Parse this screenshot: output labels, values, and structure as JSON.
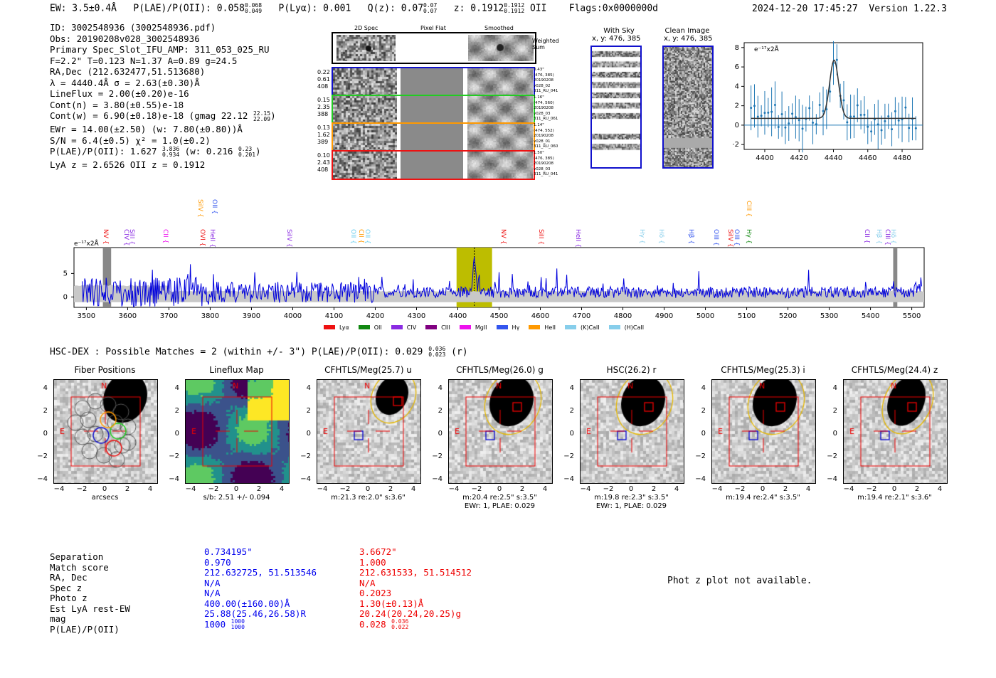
{
  "header": {
    "ew": "EW: 3.5±0.4Å",
    "plae_label": "P(LAE)/P(OII): 0.058",
    "plae_hi": "0.068",
    "plae_lo": "0.049",
    "plya": "P(Lyα): 0.001",
    "qz_label": "Q(z): 0.07",
    "qz_hi": "0.07",
    "qz_lo": "0.07",
    "z_label": "z: 0.1912",
    "z_hi": "0.1912",
    "z_lo": "0.1912",
    "z_line": "OII",
    "flags": "Flags:0x0000000d",
    "datetime": "2024-12-20 17:45:27",
    "version": "Version 1.22.3"
  },
  "info": {
    "id": "ID: 3002548936 (3002548936.pdf)",
    "obs": "Obs: 20190208v028_3002548936",
    "primary": "Primary Spec_Slot_IFU_AMP: 311_053_025_RU",
    "fparams": "F=2.2\"  T=0.123  N=1.37  A=0.89  g=24.5",
    "radec": "RA,Dec (212.632477,51.513680)",
    "lambda": "λ = 4440.4Å   σ = 2.63(±0.30)Å",
    "lineflux": "LineFlux = 2.00(±0.20)e-16",
    "contn": "Cont(n) = 3.80(±0.55)e-18",
    "contw": "Cont(w) = 6.90(±0.18)e-18 (gmag 22.12",
    "contw_hi": "22.15",
    "contw_lo": "22.09",
    "contw_close": ")",
    "ewr": "EWr = 14.00(±2.50) (w: 7.80(±0.80))Å",
    "sn": "S/N = 6.4(±0.5)  χ² = 1.0(±0.2)",
    "plae": "P(LAE)/P(OII): 1.627",
    "plae_hi": "3.836",
    "plae_lo": "0.934",
    "plae_w": "(w: 0.216",
    "plae_w_hi": "0.23",
    "plae_w_lo": "0.201",
    "plae_close": ")",
    "lya": "LyA z = 2.6526   OII z = 0.1912"
  },
  "spec2d": {
    "col_labels": [
      "2D Spec",
      "Pixel Flat",
      "Smoothed"
    ],
    "weighted_sum": [
      "Weighted",
      "Sum"
    ],
    "fibers": [
      {
        "left": [
          "0.22",
          "0.61",
          "408"
        ],
        "right": [
          "0.43\"",
          "(476, 385)",
          "20190208",
          "v028_02",
          "311_RU_041"
        ],
        "color": "#1010cc"
      },
      {
        "left": [
          "0.15",
          "2.35",
          "388"
        ],
        "right": [
          "1.16\"",
          "(474, 560)",
          "20190208",
          "v028_03",
          "311_RU_061"
        ],
        "color": "#22cc22"
      },
      {
        "left": [
          "0.13",
          "1.62",
          "389"
        ],
        "right": [
          "1.14\"",
          "(474, 552)",
          "20190208",
          "v028_01",
          "311_RU_060"
        ],
        "color": "#ff9900"
      },
      {
        "left": [
          "0.10",
          "2.43",
          "408"
        ],
        "right": [
          "1.50\"",
          "(476, 385)",
          "20190208",
          "v028_03",
          "311_RU_041"
        ],
        "color": "#ee1111"
      }
    ]
  },
  "sky": {
    "with_sky_title": "With Sky",
    "with_sky_xy": "x, y: 476, 385",
    "clean_title": "Clean Image",
    "clean_xy": "x, y: 476, 385"
  },
  "zoom_plot": {
    "ylabel": "e⁻¹⁷x2Å",
    "x_ticks": [
      "4400",
      "4420",
      "4440",
      "4460",
      "4480"
    ],
    "y_ticks": [
      "8",
      "6",
      "4",
      "2",
      "0",
      "−2"
    ]
  },
  "full_spec": {
    "ylabel": "e⁻¹⁷x2Å",
    "x_ticks": [
      "3500",
      "3600",
      "3700",
      "3800",
      "3900",
      "4000",
      "4100",
      "4200",
      "4300",
      "4400",
      "4500",
      "4600",
      "4700",
      "4800",
      "4900",
      "5000",
      "5100",
      "5200",
      "5300",
      "5400",
      "5500"
    ],
    "y_ticks": [
      "5",
      "0"
    ],
    "line_labels": [
      {
        "text": "NV",
        "color": "#ee1111"
      },
      {
        "text": "CIV",
        "color": "#8a2be2"
      },
      {
        "text": "SiII",
        "color": "#8a2be2"
      },
      {
        "text": "CII",
        "color": "#ee11ee"
      },
      {
        "text": "OVI",
        "color": "#ee1111"
      },
      {
        "text": "SiIV",
        "color": "#ff9900"
      },
      {
        "text": "HeII",
        "color": "#8a2be2"
      },
      {
        "text": "OII",
        "color": "#3355ee"
      },
      {
        "text": "SiIV",
        "color": "#8a2be2"
      },
      {
        "text": "OII",
        "color": "#66ccee"
      },
      {
        "text": "CII",
        "color": "#ff9900"
      },
      {
        "text": "OII",
        "color": "#66ccee"
      },
      {
        "text": "NV",
        "color": "#ee1111"
      },
      {
        "text": "SiII",
        "color": "#ee1111"
      },
      {
        "text": "HeII",
        "color": "#8a2be2"
      },
      {
        "text": "Hγ",
        "color": "#87ceeb"
      },
      {
        "text": "Hδ",
        "color": "#87ceeb"
      },
      {
        "text": "Hβ",
        "color": "#3355ee"
      },
      {
        "text": "OIII",
        "color": "#3355ee"
      },
      {
        "text": "SiIV",
        "color": "#ee1111"
      },
      {
        "text": "OIII",
        "color": "#3355ee"
      },
      {
        "text": "Hγ",
        "color": "#118811"
      },
      {
        "text": "CIII",
        "color": "#ff9900"
      },
      {
        "text": "CII",
        "color": "#8a2be2"
      },
      {
        "text": "Hβ",
        "color": "#87ceeb"
      },
      {
        "text": "CIII",
        "color": "#8a2be2"
      },
      {
        "text": "Hδ",
        "color": "#87ceeb"
      }
    ],
    "legend": [
      {
        "label": "Lyα",
        "color": "#ee1111"
      },
      {
        "label": "OII",
        "color": "#118811"
      },
      {
        "label": "CIV",
        "color": "#8a2be2"
      },
      {
        "label": "CIII",
        "color": "#800080"
      },
      {
        "label": "MgII",
        "color": "#ee11ee"
      },
      {
        "label": "Hγ",
        "color": "#3355ee"
      },
      {
        "label": "HeII",
        "color": "#ff9900"
      },
      {
        "label": "(K)CaII",
        "color": "#87ceeb"
      },
      {
        "label": "(H)CaII",
        "color": "#87ceeb"
      }
    ]
  },
  "hsc": {
    "title": "HSC-DEX : Possible Matches = 2 (within +/- 3\")  P(LAE)/P(OII): 0.029",
    "plae_hi": "0.036",
    "plae_lo": "0.023",
    "band": "(r)"
  },
  "cutouts": [
    {
      "title": "Fiber Positions",
      "cap1": "arcsecs",
      "cap2": ""
    },
    {
      "title": "Lineflux Map",
      "cap1": "s/b: 2.51 +/- 0.094",
      "cap2": ""
    },
    {
      "title": "CFHTLS/Meg(25.7) u",
      "cap1": "m:21.3  re:2.0\"  s:3.6\"",
      "cap2": ""
    },
    {
      "title": "CFHTLS/Meg(26.0) g",
      "cap1": "m:20.4  re:2.5\"  s:3.5\"",
      "cap2": "EWr: 1, PLAE: 0.029"
    },
    {
      "title": "HSC(26.2) r",
      "cap1": "m:19.8  re:2.3\"  s:3.5\"",
      "cap2": "EWr: 1, PLAE: 0.029"
    },
    {
      "title": "CFHTLS/Meg(25.3) i",
      "cap1": "m:19.4  re:2.4\"  s:3.5\"",
      "cap2": ""
    },
    {
      "title": "CFHTLS/Meg(24.4) z",
      "cap1": "m:19.4  re:2.1\"  s:3.6\"",
      "cap2": ""
    }
  ],
  "cutout_axes": {
    "y_ticks": [
      "4",
      "2",
      "0",
      "−2",
      "−4"
    ],
    "x_ticks": [
      "−4",
      "−2",
      "0",
      "2",
      "4"
    ],
    "north": "N",
    "east": "E"
  },
  "match_table": {
    "labels": [
      "Separation",
      "Match score",
      "RA, Dec",
      "Spec z",
      "Photo z",
      "Est LyA rest-EW",
      "mag",
      "P(LAE)/P(OII)"
    ],
    "col1": [
      "0.734195\"",
      "0.970",
      "212.632725, 51.513546",
      "N/A",
      "N/A",
      "400.00(±160.00)Å",
      "25.88(25.46,26.58)R",
      "1000"
    ],
    "col1_plae_hi": "1000",
    "col1_plae_lo": "1000",
    "col2": [
      "3.6672\"",
      "1.000",
      "212.631533, 51.514512",
      "N/A",
      "0.2023",
      "1.30(±0.13)Å",
      "20.24(20.24,20.25)g",
      "0.028"
    ],
    "col2_plae_hi": "0.036",
    "col2_plae_lo": "0.022"
  },
  "photz": "Phot z plot not available."
}
